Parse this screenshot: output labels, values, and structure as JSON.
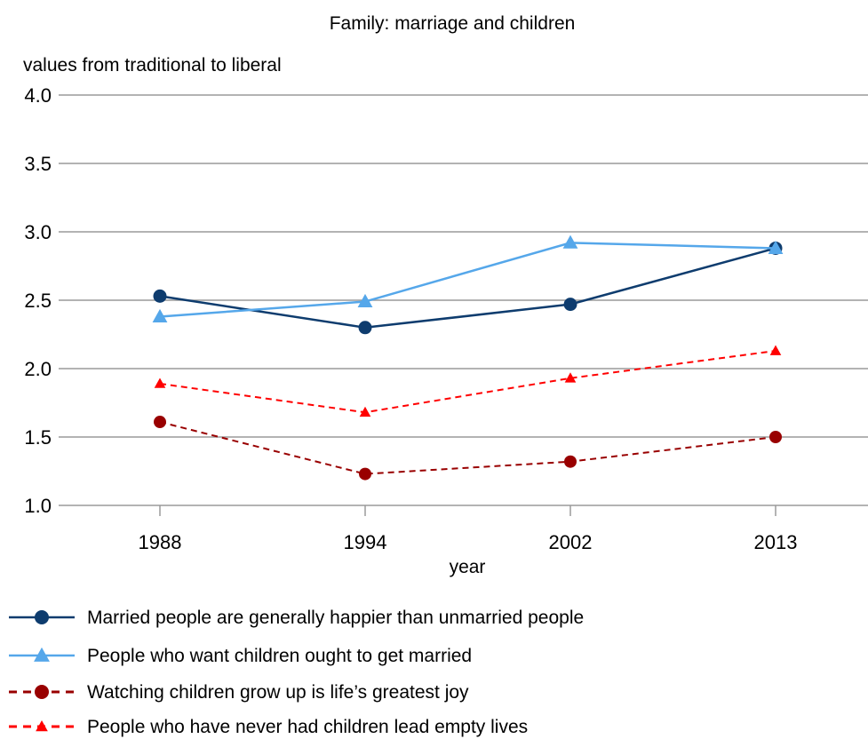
{
  "chart_data": {
    "type": "line",
    "title": "Family: marriage and children",
    "ylabel": "values from traditional to liberal",
    "xlabel": "year",
    "categories": [
      "1988",
      "1994",
      "2002",
      "2013"
    ],
    "ylim": [
      1.0,
      4.0
    ],
    "yticks": [
      "1.0",
      "1.5",
      "2.0",
      "2.5",
      "3.0",
      "3.5",
      "4.0"
    ],
    "grid": true,
    "legend_position": "bottom",
    "series": [
      {
        "name": "Married people are generally happier than unmarried people",
        "values": [
          2.53,
          2.3,
          2.47,
          2.88
        ],
        "color": "#0e3c6e",
        "marker": "circle",
        "dashed": false
      },
      {
        "name": "People who want children ought to get married",
        "values": [
          2.38,
          2.49,
          2.92,
          2.88
        ],
        "color": "#55a7ea",
        "marker": "triangle",
        "dashed": false
      },
      {
        "name": "Watching children grow up is life’s greatest joy",
        "values": [
          1.61,
          1.23,
          1.32,
          1.5
        ],
        "color": "#990000",
        "marker": "circle",
        "dashed": true
      },
      {
        "name": "People who have never had children lead empty lives",
        "values": [
          1.89,
          1.68,
          1.93,
          2.13
        ],
        "color": "#ff0000",
        "marker": "triangle",
        "dashed": true
      }
    ]
  }
}
